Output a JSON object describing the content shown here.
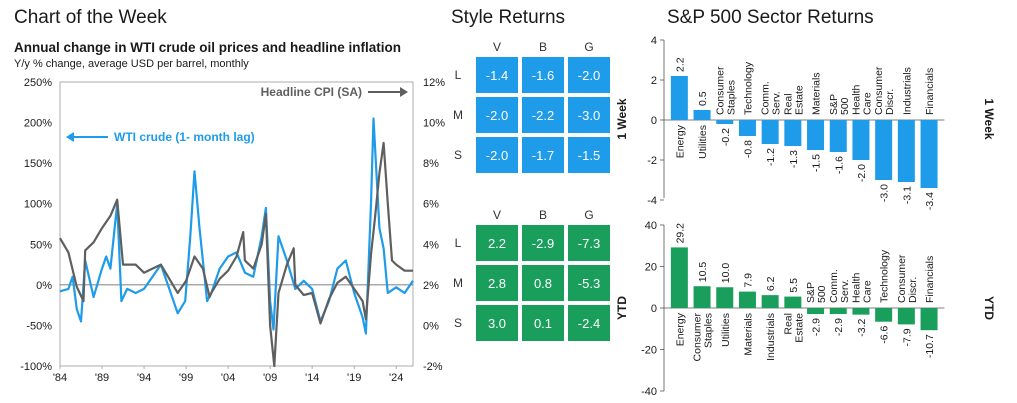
{
  "left": {
    "section_title": "Chart of the Week",
    "chart_data": {
      "type": "line",
      "title": "Annual change in WTI crude oil prices and headline inflation",
      "subtitle": "Y/y % change, average USD per barrel, monthly",
      "x_ticks": [
        "'84",
        "'89",
        "'94",
        "'99",
        "'04",
        "'09",
        "'14",
        "'19",
        "'24"
      ],
      "x_range": [
        1984,
        2026
      ],
      "y_left": {
        "ticks": [
          "250%",
          "200%",
          "150%",
          "100%",
          "50%",
          "0%",
          "-50%",
          "-100%"
        ],
        "range": [
          -100,
          250
        ]
      },
      "y_right": {
        "ticks": [
          "12%",
          "10%",
          "8%",
          "6%",
          "4%",
          "2%",
          "0%",
          "-2%"
        ],
        "range": [
          -2,
          12
        ]
      },
      "series": [
        {
          "name": "WTI crude (1- month lag)",
          "axis": "left",
          "color": "#1e9be9",
          "x": [
            1984,
            1985,
            1985.5,
            1986,
            1986.5,
            1987,
            1988,
            1989,
            1989.5,
            1990,
            1990.8,
            1991.3,
            1992,
            1993,
            1994,
            1995,
            1996,
            1997,
            1998,
            1998.9,
            1999.5,
            2000,
            2000.6,
            2001.5,
            2002,
            2003,
            2004,
            2005,
            2006,
            2007,
            2008,
            2008.5,
            2009,
            2009.4,
            2010,
            2011,
            2012,
            2013,
            2014,
            2015,
            2016,
            2017,
            2018,
            2019,
            2020,
            2020.4,
            2021,
            2021.3,
            2022,
            2022.5,
            2023,
            2024,
            2025,
            2026
          ],
          "y": [
            -8,
            -5,
            10,
            -30,
            -45,
            30,
            -15,
            20,
            35,
            20,
            100,
            -20,
            -5,
            -10,
            -5,
            10,
            25,
            -5,
            -35,
            -20,
            60,
            140,
            70,
            -20,
            -10,
            20,
            35,
            40,
            15,
            10,
            60,
            95,
            -20,
            -55,
            60,
            30,
            -5,
            5,
            -5,
            -45,
            -20,
            20,
            30,
            -10,
            -40,
            -60,
            100,
            205,
            70,
            45,
            -10,
            -3,
            -10,
            5
          ]
        },
        {
          "name": "Headline CPI (SA)",
          "axis": "right",
          "color": "#5f5f5f",
          "x": [
            1984,
            1985,
            1986,
            1986.8,
            1987,
            1988,
            1989,
            1990,
            1990.8,
            1991.5,
            1992,
            1993,
            1994,
            1995,
            1996,
            1997,
            1998,
            1999,
            2000,
            2001,
            2001.8,
            2002,
            2003,
            2004,
            2005,
            2005.8,
            2006,
            2007,
            2008,
            2008.5,
            2009,
            2009.5,
            2010,
            2011,
            2011.8,
            2012,
            2013,
            2014,
            2015,
            2016,
            2017,
            2018,
            2019,
            2020,
            2020.4,
            2021,
            2021.5,
            2022,
            2022.5,
            2023,
            2023.5,
            2024,
            2025,
            2026
          ],
          "y": [
            4.3,
            3.6,
            1.9,
            1.2,
            3.7,
            4.1,
            4.8,
            5.4,
            6.2,
            3.0,
            3.0,
            3.0,
            2.6,
            2.8,
            3.0,
            2.3,
            1.6,
            2.2,
            3.4,
            2.8,
            1.4,
            1.6,
            2.3,
            2.7,
            3.4,
            4.6,
            3.2,
            2.8,
            4.0,
            5.5,
            0.0,
            -2.0,
            1.6,
            3.0,
            3.8,
            2.0,
            1.5,
            1.6,
            0.1,
            1.3,
            2.1,
            2.4,
            1.8,
            1.2,
            0.3,
            3.5,
            5.4,
            7.5,
            9.0,
            6.0,
            3.2,
            3.0,
            2.7,
            2.7
          ]
        }
      ]
    }
  },
  "style": {
    "section_title": "Style Returns",
    "columns": [
      "V",
      "B",
      "G"
    ],
    "rows": [
      "L",
      "M",
      "S"
    ],
    "week_color": "#1e9be9",
    "ytd_color": "#1a9e5c",
    "week": [
      [
        -1.4,
        -1.6,
        -2.0
      ],
      [
        -2.0,
        -2.2,
        -3.0
      ],
      [
        -2.0,
        -1.7,
        -1.5
      ]
    ],
    "ytd": [
      [
        2.2,
        -2.9,
        -7.3
      ],
      [
        2.8,
        0.8,
        -5.3
      ],
      [
        3.0,
        0.1,
        -2.4
      ]
    ],
    "week_str": [
      [
        "-1.4",
        "-1.6",
        "-2.0"
      ],
      [
        "-2.0",
        "-2.2",
        "-3.0"
      ],
      [
        "-2.0",
        "-1.7",
        "-1.5"
      ]
    ],
    "ytd_str": [
      [
        "2.2",
        "-2.9",
        "-7.3"
      ],
      [
        "2.8",
        "0.8",
        "-5.3"
      ],
      [
        "3.0",
        "0.1",
        "-2.4"
      ]
    ]
  },
  "sector": {
    "section_title": "S&P 500 Sector Returns",
    "charts": [
      {
        "type": "bar",
        "label": "1 Week",
        "color": "#1e9be9",
        "y_ticks": [
          4,
          2,
          0,
          -2,
          -4
        ],
        "ylim": [
          -4,
          4
        ],
        "categories": [
          "Energy",
          "Utilities",
          "Consumer Staples",
          "Technology",
          "Comm. Serv.",
          "Real Estate",
          "Materials",
          "S&P 500",
          "Health Care",
          "Consumer Discr.",
          "Industrials",
          "Financials"
        ],
        "values": [
          2.2,
          0.5,
          -0.2,
          -0.8,
          -1.2,
          -1.3,
          -1.5,
          -1.6,
          -2.0,
          -3.0,
          -3.1,
          -3.4
        ],
        "value_labels": [
          "2.2",
          "0.5",
          "-0.2",
          "-0.8",
          "-1.2",
          "-1.3",
          "-1.5",
          "-1.6",
          "-2.0",
          "-3.0",
          "-3.1",
          "-3.4"
        ]
      },
      {
        "type": "bar",
        "label": "YTD",
        "color": "#1a9e5c",
        "y_ticks": [
          40,
          20,
          0,
          -20,
          -40
        ],
        "ylim": [
          -40,
          40
        ],
        "categories": [
          "Energy",
          "Consumer Staples",
          "Utilities",
          "Materials",
          "Industrials",
          "Real Estate",
          "S&P 500",
          "Comm. Serv.",
          "Health Care",
          "Technology",
          "Consumer Discr.",
          "Financials"
        ],
        "values": [
          29.2,
          10.5,
          10.0,
          7.9,
          6.2,
          5.5,
          -2.9,
          -2.9,
          -3.2,
          -6.6,
          -7.9,
          -10.7
        ],
        "value_labels": [
          "29.2",
          "10.5",
          "10.0",
          "7.9",
          "6.2",
          "5.5",
          "-2.9",
          "-2.9",
          "-3.2",
          "-6.6",
          "-7.9",
          "-10.7"
        ]
      }
    ]
  }
}
